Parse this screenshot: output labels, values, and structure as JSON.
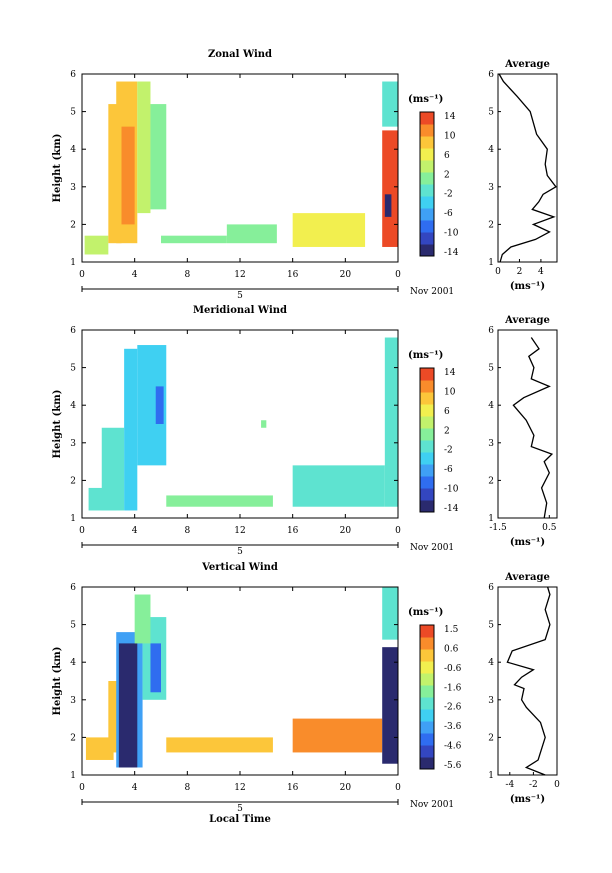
{
  "x_ticks": [
    "0",
    "4",
    "8",
    "12",
    "16",
    "20",
    "0"
  ],
  "day_marker": "5",
  "month_label": "Nov 2001",
  "xlabel": "Local Time",
  "ylabel": "Height (km)",
  "avg_title": "Average",
  "unit": "(ms⁻¹)",
  "chart_data": [
    {
      "type": "heatmap",
      "title": "Zonal Wind",
      "y_ticks": [
        "1",
        "2",
        "3",
        "4",
        "5",
        "6"
      ],
      "ylim": [
        1,
        6
      ],
      "xlim": [
        0,
        24
      ],
      "colorbar_ticks": [
        "14",
        "10",
        "6",
        "2",
        "-2",
        "-6",
        "-10",
        "-14"
      ],
      "colorbar_range": [
        -14,
        14
      ],
      "blocks": [
        {
          "x0": 0.2,
          "x1": 2.0,
          "y0": 1.2,
          "y1": 1.7,
          "v": 4
        },
        {
          "x0": 2.0,
          "x1": 3.0,
          "y0": 1.5,
          "y1": 5.2,
          "v": 7
        },
        {
          "x0": 2.6,
          "x1": 4.2,
          "y0": 1.5,
          "y1": 5.8,
          "v": 9
        },
        {
          "x0": 3.0,
          "x1": 4.0,
          "y0": 2.0,
          "y1": 4.6,
          "v": 11
        },
        {
          "x0": 4.2,
          "x1": 5.2,
          "y0": 2.3,
          "y1": 5.8,
          "v": 3
        },
        {
          "x0": 5.2,
          "x1": 6.4,
          "y0": 2.4,
          "y1": 5.2,
          "v": 1
        },
        {
          "x0": 6.0,
          "x1": 11.0,
          "y0": 1.5,
          "y1": 1.7,
          "v": 0
        },
        {
          "x0": 11.0,
          "x1": 14.8,
          "y0": 1.5,
          "y1": 2.0,
          "v": 2
        },
        {
          "x0": 16.0,
          "x1": 21.5,
          "y0": 1.4,
          "y1": 2.3,
          "v": 5
        },
        {
          "x0": 22.8,
          "x1": 24.0,
          "y0": 4.6,
          "y1": 5.8,
          "v": -1
        },
        {
          "x0": 22.8,
          "x1": 24.0,
          "y0": 1.4,
          "y1": 4.5,
          "v": 12
        },
        {
          "x0": 23.0,
          "x1": 23.5,
          "y0": 2.2,
          "y1": 2.8,
          "v": -12
        }
      ],
      "average": {
        "xlim": [
          0,
          5.5
        ],
        "x_ticks": [
          "0",
          "2",
          "4"
        ],
        "x_tick_values": [
          0,
          2,
          4
        ],
        "profile": [
          [
            0.2,
            1.0
          ],
          [
            0.4,
            1.2
          ],
          [
            1.2,
            1.4
          ],
          [
            3.5,
            1.6
          ],
          [
            4.8,
            1.8
          ],
          [
            3.3,
            2.0
          ],
          [
            5.2,
            2.2
          ],
          [
            3.2,
            2.4
          ],
          [
            3.8,
            2.6
          ],
          [
            4.2,
            2.8
          ],
          [
            5.4,
            3.0
          ],
          [
            4.6,
            3.3
          ],
          [
            4.4,
            3.6
          ],
          [
            4.6,
            4.0
          ],
          [
            3.6,
            4.4
          ],
          [
            3.0,
            5.0
          ],
          [
            1.8,
            5.4
          ],
          [
            0.5,
            5.8
          ],
          [
            0.1,
            6.0
          ]
        ]
      }
    },
    {
      "type": "heatmap",
      "title": "Meridional Wind",
      "y_ticks": [
        "1",
        "2",
        "3",
        "4",
        "5",
        "6"
      ],
      "ylim": [
        1,
        6
      ],
      "xlim": [
        0,
        24
      ],
      "colorbar_ticks": [
        "14",
        "10",
        "6",
        "2",
        "-2",
        "-6",
        "-10",
        "-14"
      ],
      "colorbar_range": [
        -14,
        14
      ],
      "blocks": [
        {
          "x0": 0.5,
          "x1": 2.6,
          "y0": 1.2,
          "y1": 1.8,
          "v": -1
        },
        {
          "x0": 1.5,
          "x1": 3.2,
          "y0": 1.2,
          "y1": 3.4,
          "v": -2
        },
        {
          "x0": 3.2,
          "x1": 4.2,
          "y0": 1.2,
          "y1": 5.5,
          "v": -4
        },
        {
          "x0": 4.2,
          "x1": 6.4,
          "y0": 2.4,
          "y1": 5.6,
          "v": -3
        },
        {
          "x0": 5.6,
          "x1": 6.2,
          "y0": 3.5,
          "y1": 4.5,
          "v": -9
        },
        {
          "x0": 6.4,
          "x1": 14.5,
          "y0": 1.3,
          "y1": 1.6,
          "v": 0
        },
        {
          "x0": 16.0,
          "x1": 23.0,
          "y0": 1.3,
          "y1": 2.4,
          "v": -1
        },
        {
          "x0": 23.0,
          "x1": 24.0,
          "y0": 1.3,
          "y1": 5.8,
          "v": -2
        },
        {
          "x0": 13.6,
          "x1": 14.0,
          "y0": 3.4,
          "y1": 3.6,
          "v": 0
        }
      ],
      "average": {
        "xlim": [
          -1.5,
          0.8
        ],
        "x_ticks": [
          "-1.5",
          "0.5"
        ],
        "x_tick_values": [
          -1.5,
          0.5
        ],
        "profile": [
          [
            0.3,
            1.0
          ],
          [
            0.4,
            1.4
          ],
          [
            0.2,
            1.8
          ],
          [
            0.5,
            2.2
          ],
          [
            0.3,
            2.5
          ],
          [
            0.6,
            2.7
          ],
          [
            -0.2,
            2.9
          ],
          [
            -0.1,
            3.2
          ],
          [
            -0.4,
            3.6
          ],
          [
            -0.9,
            4.0
          ],
          [
            -0.5,
            4.2
          ],
          [
            0.5,
            4.5
          ],
          [
            -0.2,
            4.7
          ],
          [
            -0.1,
            5.0
          ],
          [
            -0.3,
            5.3
          ],
          [
            0.1,
            5.5
          ],
          [
            -0.2,
            5.8
          ]
        ]
      }
    },
    {
      "type": "heatmap",
      "title": "Vertical Wind",
      "y_ticks": [
        "1",
        "2",
        "3",
        "4",
        "5",
        "6"
      ],
      "ylim": [
        1,
        6
      ],
      "xlim": [
        0,
        24
      ],
      "colorbar_ticks": [
        "1.5",
        "0.6",
        "-0.6",
        "-1.6",
        "-2.6",
        "-3.6",
        "-4.6",
        "-5.6"
      ],
      "colorbar_range": [
        -5.6,
        1.6
      ],
      "blocks": [
        {
          "x0": 0.3,
          "x1": 2.4,
          "y0": 1.4,
          "y1": 2.0,
          "v": 0.3
        },
        {
          "x0": 2.0,
          "x1": 3.0,
          "y0": 1.6,
          "y1": 3.5,
          "v": 0.1
        },
        {
          "x0": 2.6,
          "x1": 4.6,
          "y0": 1.2,
          "y1": 4.8,
          "v": -3.8
        },
        {
          "x0": 2.8,
          "x1": 4.2,
          "y0": 1.2,
          "y1": 4.5,
          "v": -5.6
        },
        {
          "x0": 4.6,
          "x1": 6.4,
          "y0": 3.0,
          "y1": 5.2,
          "v": -2.2
        },
        {
          "x0": 5.2,
          "x1": 6.0,
          "y0": 3.2,
          "y1": 4.5,
          "v": -4.0
        },
        {
          "x0": 4.0,
          "x1": 5.2,
          "y0": 4.5,
          "y1": 5.8,
          "v": -1.8
        },
        {
          "x0": 6.4,
          "x1": 14.5,
          "y0": 1.6,
          "y1": 2.0,
          "v": 0.2
        },
        {
          "x0": 16.0,
          "x1": 22.8,
          "y0": 1.6,
          "y1": 2.5,
          "v": 0.4
        },
        {
          "x0": 22.8,
          "x1": 24.0,
          "y0": 1.3,
          "y1": 4.4,
          "v": -5.6
        },
        {
          "x0": 22.8,
          "x1": 24.0,
          "y0": 4.6,
          "y1": 6.0,
          "v": -2.2
        }
      ],
      "average": {
        "xlim": [
          -5,
          0
        ],
        "x_ticks": [
          "-4",
          "-2",
          "0"
        ],
        "x_tick_values": [
          -4,
          -2,
          0
        ],
        "profile": [
          [
            -1.0,
            1.0
          ],
          [
            -2.6,
            1.2
          ],
          [
            -1.6,
            1.4
          ],
          [
            -1.0,
            2.0
          ],
          [
            -1.4,
            2.4
          ],
          [
            -2.6,
            2.8
          ],
          [
            -3.0,
            3.0
          ],
          [
            -2.8,
            3.3
          ],
          [
            -3.6,
            3.4
          ],
          [
            -3.0,
            3.6
          ],
          [
            -2.0,
            3.8
          ],
          [
            -4.2,
            4.0
          ],
          [
            -3.8,
            4.3
          ],
          [
            -1.0,
            4.6
          ],
          [
            -0.6,
            5.0
          ],
          [
            -1.0,
            5.4
          ],
          [
            -0.6,
            5.8
          ],
          [
            -0.8,
            6.0
          ]
        ]
      }
    }
  ]
}
